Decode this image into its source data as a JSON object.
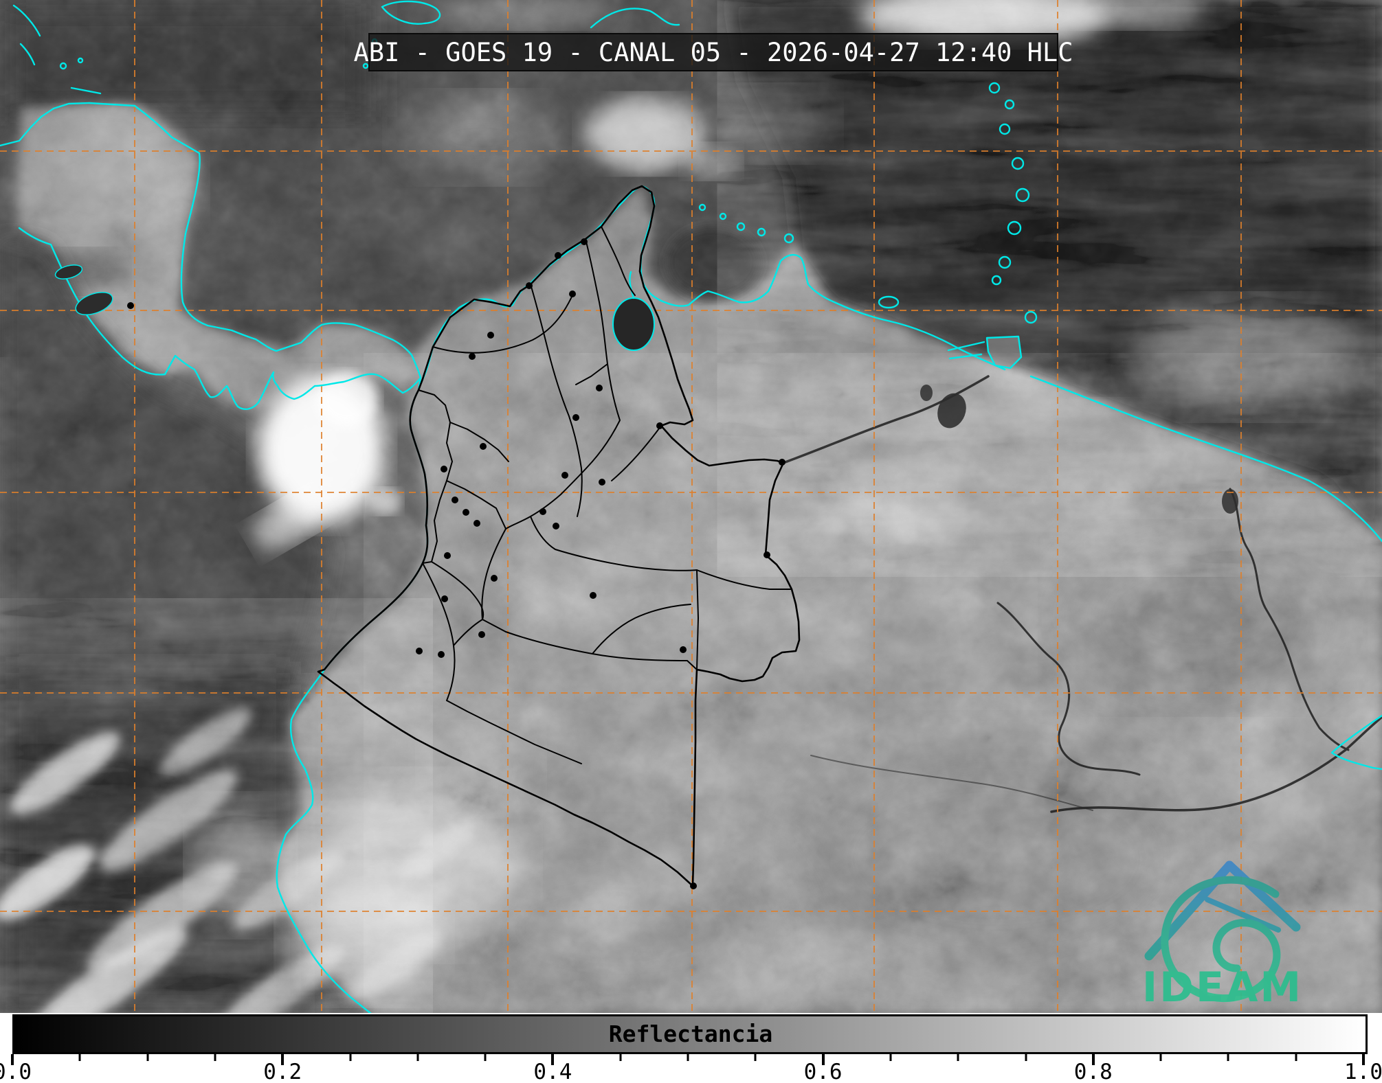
{
  "header": {
    "title": "ABI - GOES 19 - CANAL 05 - 2026-04-27 12:40 HLC"
  },
  "colorbar": {
    "label": "Reflectancia",
    "min": 0.0,
    "max": 1.0,
    "major_ticks": [
      0.0,
      0.2,
      0.4,
      0.6,
      0.8,
      1.0
    ],
    "tick_labels": [
      "0.0",
      "0.2",
      "0.4",
      "0.6",
      "0.8",
      "1.0"
    ],
    "minor_step": 0.05,
    "gradient_start": "#000000",
    "gradient_end": "#ffffff"
  },
  "logo": {
    "text": "IDEAM",
    "green": "#2bbd8e",
    "blue": "#3f86c6"
  },
  "map": {
    "coastline_color": "#00e8e8",
    "graticule_color": "#de7f2b",
    "border_color": "#000000",
    "satellite_product": "grayscale reflectance imagery",
    "city_dot_count": 30
  }
}
